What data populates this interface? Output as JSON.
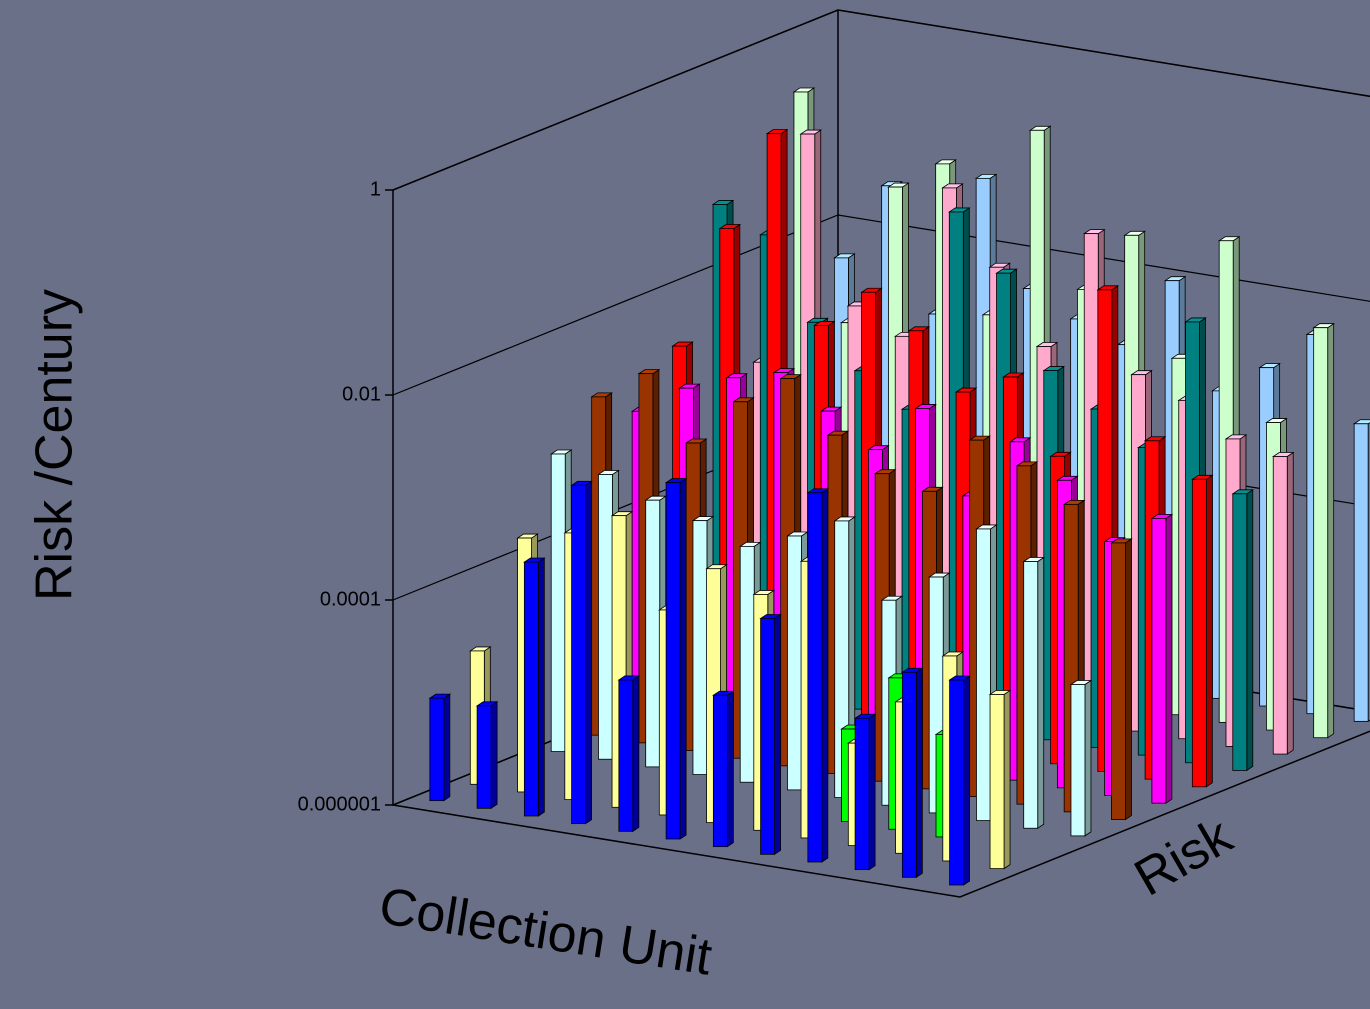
{
  "chart_data": {
    "type": "bar3d",
    "y_label": "Risk /Century",
    "x_label": "Collection Unit",
    "z_label": "Risk",
    "log_y": true,
    "ylim": [
      1e-06,
      1
    ],
    "yticks": [
      {
        "value": 1e-06,
        "label": "0.000001"
      },
      0.0001,
      0.01,
      1
    ],
    "categories": [
      null,
      null,
      null,
      null,
      null,
      null,
      null,
      null,
      null,
      null,
      null,
      null
    ],
    "series": [
      {
        "color": "#0000ff",
        "values": [
          1e-05,
          1e-05,
          0.0003,
          0.002,
          3e-05,
          0.003,
          3e-05,
          0.0002,
          0.004,
          3e-05,
          0.0001,
          0.0001
        ]
      },
      {
        "color": "#ffff99",
        "values": [
          2e-05,
          0.0003,
          0.0004,
          0.0007,
          0.0001,
          0.0003,
          0.0002,
          0.0005,
          1e-05,
          3e-05,
          0.0001,
          5e-05
        ]
      },
      {
        "color": "#00ff00",
        "values": [
          null,
          null,
          null,
          null,
          null,
          null,
          null,
          8e-06,
          3e-05,
          1e-05,
          null,
          null
        ]
      },
      {
        "color": "#ccffff",
        "values": [
          0.0008,
          0.0006,
          0.0004,
          0.0003,
          0.0002,
          0.0003,
          0.0005,
          0.0001,
          0.0002,
          0.0007,
          0.0004,
          3e-05
        ]
      },
      {
        "color": "#993300",
        "values": [
          0.002,
          0.004,
          0.001,
          0.003,
          0.006,
          0.002,
          0.001,
          0.0008,
          0.003,
          0.002,
          0.001,
          0.0005
        ]
      },
      {
        "color": "#ff00ff",
        "values": [
          0.001,
          0.002,
          0.003,
          0.004,
          0.002,
          0.001,
          0.003,
          0.0005,
          0.002,
          0.001,
          0.0003,
          0.0006
        ]
      },
      {
        "color": "#ff0000",
        "values": [
          0.003,
          0.05,
          0.5,
          0.008,
          0.02,
          0.01,
          0.003,
          0.005,
          0.001,
          0.05,
          0.002,
          0.001
        ]
      },
      {
        "color": "#008080",
        "values": [
          0.05,
          0.03,
          0.005,
          0.002,
          0.001,
          0.1,
          0.03,
          0.004,
          0.002,
          0.001,
          0.02,
          0.0005
        ]
      },
      {
        "color": "#ffaacc",
        "values": [
          0.001,
          0.2,
          0.005,
          0.003,
          0.1,
          0.02,
          0.004,
          0.06,
          0.003,
          0.002,
          0.001,
          0.0008
        ]
      },
      {
        "color": "#ccffcc",
        "values": [
          0.3,
          0.002,
          0.05,
          0.1,
          0.004,
          0.3,
          0.01,
          0.04,
          0.003,
          0.05,
          0.001,
          0.01
        ]
      },
      {
        "color": "#99ccff",
        "values": [
          0.005,
          0.03,
          0.002,
          0.05,
          0.005,
          0.003,
          0.002,
          0.01,
          0.001,
          0.002,
          0.005,
          0.0008
        ]
      }
    ]
  }
}
